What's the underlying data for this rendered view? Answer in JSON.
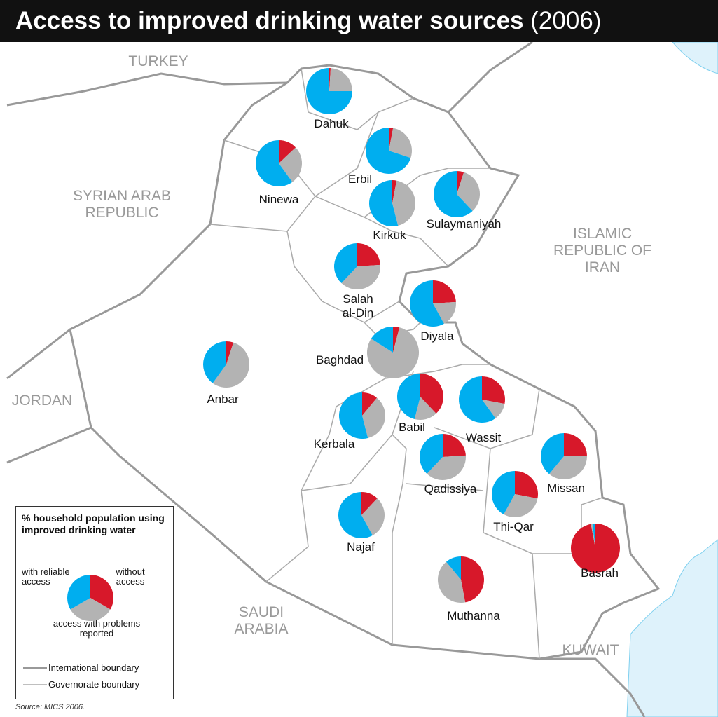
{
  "header": {
    "title": "Access to improved drinking water sources",
    "year": "(2006)"
  },
  "countries": [
    "TURKEY",
    "SYRIAN ARAB REPUBLIC",
    "JORDAN",
    "ISLAMIC REPUBLIC OF IRAN",
    "SAUDI ARABIA",
    "KUWAIT"
  ],
  "colors": {
    "reliable": "#00aeef",
    "problems": "#b3b3b3",
    "without": "#d7182a"
  },
  "governorates": [
    {
      "name": "Dahuk",
      "without": 1,
      "problems": 24,
      "reliable": 75
    },
    {
      "name": "Ninewa",
      "without": 13,
      "problems": 27,
      "reliable": 60
    },
    {
      "name": "Erbil",
      "without": 3,
      "problems": 27,
      "reliable": 70
    },
    {
      "name": "Sulaymaniyah",
      "without": 5,
      "problems": 33,
      "reliable": 62
    },
    {
      "name": "Kirkuk",
      "without": 3,
      "problems": 43,
      "reliable": 54
    },
    {
      "name": "Salah al-Din",
      "without": 24,
      "problems": 38,
      "reliable": 38
    },
    {
      "name": "Diyala",
      "without": 24,
      "problems": 18,
      "reliable": 58
    },
    {
      "name": "Baghdad",
      "without": 4,
      "problems": 80,
      "reliable": 16
    },
    {
      "name": "Anbar",
      "without": 5,
      "problems": 55,
      "reliable": 40
    },
    {
      "name": "Kerbala",
      "without": 11,
      "problems": 35,
      "reliable": 54
    },
    {
      "name": "Babil",
      "without": 38,
      "problems": 16,
      "reliable": 46
    },
    {
      "name": "Wassit",
      "without": 28,
      "problems": 12,
      "reliable": 60
    },
    {
      "name": "Qadissiya",
      "without": 24,
      "problems": 38,
      "reliable": 38
    },
    {
      "name": "Missan",
      "without": 25,
      "problems": 36,
      "reliable": 39
    },
    {
      "name": "Thi-Qar",
      "without": 28,
      "problems": 30,
      "reliable": 42
    },
    {
      "name": "Najaf",
      "without": 12,
      "problems": 30,
      "reliable": 58
    },
    {
      "name": "Muthanna",
      "without": 47,
      "problems": 42,
      "reliable": 11
    },
    {
      "name": "Basrah",
      "without": 97,
      "problems": 1,
      "reliable": 2
    }
  ],
  "legend": {
    "title": "% household population using improved drinking water",
    "reliable": "with reliable access",
    "without": "without access",
    "problems": "access with problems reported",
    "international": "International boundary",
    "governorate": "Governorate boundary"
  },
  "source": "Source: MICS 2006."
}
